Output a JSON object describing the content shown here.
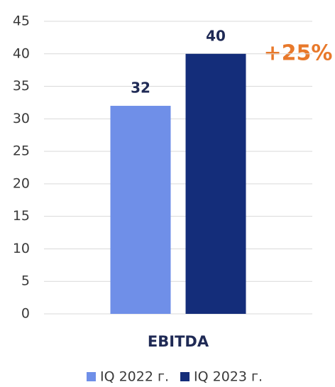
{
  "chart_data": {
    "type": "bar",
    "annotation": "+25%",
    "categories": [
      "EBITDA"
    ],
    "series": [
      {
        "name": "IQ 2022 г.",
        "color": "#6f8fe8",
        "values": [
          32
        ]
      },
      {
        "name": "IQ 2023 г.",
        "color": "#142d7a",
        "values": [
          40
        ]
      }
    ],
    "ylim": [
      0,
      45
    ],
    "yticks": [
      0,
      5,
      10,
      15,
      20,
      25,
      30,
      35,
      40,
      45
    ],
    "grid": true
  }
}
